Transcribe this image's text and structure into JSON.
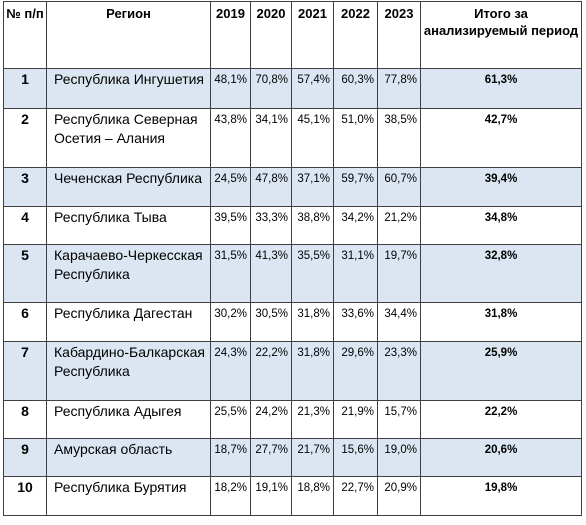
{
  "headers": {
    "num": "№ п/п",
    "region": "Регион",
    "y2019": "2019",
    "y2020": "2020",
    "y2021": "2021",
    "y2022": "2022",
    "y2023": "2023",
    "total": "Итого за анализируемый период"
  },
  "rows": [
    {
      "num": "1",
      "region": "Республика Ингушетия",
      "v2019": "48,1%",
      "v2020": "70,8%",
      "v2021": "57,4%",
      "v2022": "60,3%",
      "v2023": "77,8%",
      "total": "61,3%"
    },
    {
      "num": "2",
      "region": "Республика Северная Осетия – Алания",
      "v2019": "43,8%",
      "v2020": "34,1%",
      "v2021": "45,1%",
      "v2022": "51,0%",
      "v2023": "38,5%",
      "total": "42,7%"
    },
    {
      "num": "3",
      "region": "Чеченская Республика",
      "v2019": "24,5%",
      "v2020": "47,8%",
      "v2021": "37,1%",
      "v2022": "59,7%",
      "v2023": "60,7%",
      "total": "39,4%"
    },
    {
      "num": "4",
      "region": "Республика Тыва",
      "v2019": "39,5%",
      "v2020": "33,3%",
      "v2021": "38,8%",
      "v2022": "34,2%",
      "v2023": "21,2%",
      "total": "34,8%"
    },
    {
      "num": "5",
      "region": "Карачаево-Черкесская Республика",
      "v2019": "31,5%",
      "v2020": "41,3%",
      "v2021": "35,5%",
      "v2022": "31,1%",
      "v2023": "19,7%",
      "total": "32,8%"
    },
    {
      "num": "6",
      "region": "Республика Дагестан",
      "v2019": "30,2%",
      "v2020": "30,5%",
      "v2021": "31,8%",
      "v2022": "33,6%",
      "v2023": "34,4%",
      "total": "31,8%"
    },
    {
      "num": "7",
      "region": "Кабардино-Балкарская Республика",
      "v2019": "24,3%",
      "v2020": "22,2%",
      "v2021": "31,8%",
      "v2022": "29,6%",
      "v2023": "23,3%",
      "total": "25,9%"
    },
    {
      "num": "8",
      "region": "Республика Адыгея",
      "v2019": "25,5%",
      "v2020": "24,2%",
      "v2021": "21,3%",
      "v2022": "21,9%",
      "v2023": "15,7%",
      "total": "22,2%"
    },
    {
      "num": "9",
      "region": "Амурская область",
      "v2019": "18,7%",
      "v2020": "27,7%",
      "v2021": "21,7%",
      "v2022": "15,6%",
      "v2023": "19,0%",
      "total": "20,6%"
    },
    {
      "num": "10",
      "region": "Республика Бурятия",
      "v2019": "18,2%",
      "v2020": "19,1%",
      "v2021": "18,8%",
      "v2022": "22,7%",
      "v2023": "20,9%",
      "total": "19,8%"
    }
  ],
  "colors": {
    "shade": "#dce6f2",
    "border": "#3f3f3f"
  }
}
